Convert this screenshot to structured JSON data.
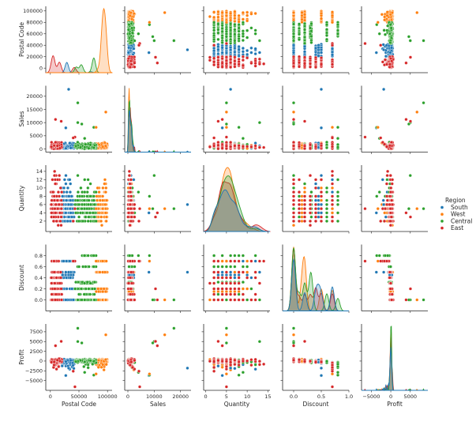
{
  "chart_data": {
    "type": "scatter",
    "title": "",
    "subtype": "pairplot",
    "variables": [
      "Postal Code",
      "Sales",
      "Quantity",
      "Discount",
      "Profit"
    ],
    "axes": {
      "Postal Code": {
        "lim": [
          -8000,
          108000
        ],
        "ticks": [
          0,
          50000,
          100000
        ],
        "tick_labels": [
          "0",
          "50000",
          "100000"
        ],
        "ytick_labels": [
          "0",
          "20000",
          "40000",
          "60000",
          "80000",
          "100000"
        ],
        "yticks": [
          0,
          20000,
          40000,
          60000,
          80000,
          100000
        ]
      },
      "Sales": {
        "lim": [
          -1200,
          24000
        ],
        "ticks": [
          0,
          10000,
          20000
        ],
        "tick_labels": [
          "0",
          "10000",
          "20000"
        ],
        "yticks": [
          0,
          5000,
          10000,
          15000,
          20000
        ],
        "ytick_labels": [
          "0",
          "5000",
          "10000",
          "15000",
          "20000"
        ]
      },
      "Quantity": {
        "lim": [
          -0.5,
          15.5
        ],
        "ticks": [
          0,
          5,
          10,
          15
        ],
        "tick_labels": [
          "0",
          "5",
          "10",
          "15"
        ],
        "yticks": [
          2,
          4,
          6,
          8,
          10,
          12,
          14
        ],
        "ytick_labels": [
          "2",
          "4",
          "6",
          "8",
          "10",
          "12",
          "14"
        ]
      },
      "Discount": {
        "lim": [
          -0.2,
          1.0
        ],
        "ticks": [
          0.0,
          0.5,
          1.0
        ],
        "tick_labels": [
          "0.0",
          "0.5",
          "1.0"
        ],
        "yticks": [
          0.0,
          0.2,
          0.4,
          0.6,
          0.8
        ],
        "ytick_labels": [
          "0.0",
          "0.2",
          "0.4",
          "0.6",
          "0.8"
        ]
      },
      "Profit": {
        "lim": [
          -7500,
          9500
        ],
        "ticks": [
          -5000,
          0,
          5000
        ],
        "tick_labels": [
          "−5000",
          "0",
          "5000"
        ],
        "yticks": [
          -5000,
          -2500,
          0,
          2500,
          5000,
          7500
        ],
        "ytick_labels": [
          "−5000",
          "−2500",
          "0",
          "2500",
          "5000",
          "7500"
        ]
      }
    },
    "legend": {
      "title": "Region",
      "position": "right",
      "entries": [
        {
          "name": "South",
          "color": "#1f77b4"
        },
        {
          "name": "West",
          "color": "#ff7f0e"
        },
        {
          "name": "Central",
          "color": "#2ca02c"
        },
        {
          "name": "East",
          "color": "#d62728"
        }
      ]
    },
    "hue_groups": {
      "East": {
        "postal_range": [
          1000,
          20000
        ],
        "postal_peaks": [
          [
            5000,
            1.0
          ],
          [
            16000,
            0.6
          ],
          [
            42000,
            0.3
          ]
        ]
      },
      "South": {
        "postal_range": [
          20000,
          42000
        ],
        "postal_peaks": [
          [
            29000,
            0.55
          ],
          [
            70000,
            0.05
          ]
        ]
      },
      "Central": {
        "postal_range": [
          43000,
          80000
        ],
        "postal_peaks": [
          [
            45000,
            0.3
          ],
          [
            55000,
            0.45
          ],
          [
            75000,
            0.8
          ]
        ]
      },
      "West": {
        "postal_range": [
          80000,
          99500
        ],
        "postal_peaks": [
          [
            85000,
            0.2
          ],
          [
            91000,
            2.0
          ],
          [
            94000,
            1.45
          ],
          [
            97000,
            1.3
          ]
        ]
      }
    },
    "outliers": [
      {
        "region": "South",
        "Postal Code": 32000,
        "Sales": 22638,
        "Quantity": 6,
        "Discount": 0.5,
        "Profit": -1811
      },
      {
        "region": "Central",
        "Postal Code": 48000,
        "Sales": 17500,
        "Quantity": 5,
        "Discount": 0.0,
        "Profit": 8400
      },
      {
        "region": "West",
        "Postal Code": 97000,
        "Sales": 14000,
        "Quantity": 5,
        "Discount": 0.0,
        "Profit": 6720
      },
      {
        "region": "Central",
        "Postal Code": 48000,
        "Sales": 10000,
        "Quantity": 13,
        "Discount": 0.0,
        "Profit": 5000
      },
      {
        "region": "Central",
        "Postal Code": 55000,
        "Sales": 9450,
        "Quantity": 5,
        "Discount": 0.0,
        "Profit": 4630
      },
      {
        "region": "East",
        "Postal Code": 19000,
        "Sales": 10500,
        "Quantity": 3,
        "Discount": 0.2,
        "Profit": 5040
      },
      {
        "region": "East",
        "Postal Code": 9000,
        "Sales": 11200,
        "Quantity": 4,
        "Discount": 0.0,
        "Profit": 3920
      },
      {
        "region": "East",
        "Postal Code": 43000,
        "Sales": 4500,
        "Quantity": 5,
        "Discount": 0.7,
        "Profit": -6600
      },
      {
        "region": "South",
        "Postal Code": 27000,
        "Sales": 8000,
        "Quantity": 4,
        "Discount": 0.5,
        "Profit": -3700
      },
      {
        "region": "Central",
        "Postal Code": 76000,
        "Sales": 8200,
        "Quantity": 8,
        "Discount": 0.8,
        "Profit": -3600
      },
      {
        "region": "West",
        "Postal Code": 80000,
        "Sales": 8200,
        "Quantity": 5,
        "Discount": 0.7,
        "Profit": -3300
      },
      {
        "region": "Central",
        "Postal Code": 60000,
        "Sales": 4000,
        "Quantity": 9,
        "Discount": 0.8,
        "Profit": -2900
      },
      {
        "region": "East",
        "Postal Code": 40000,
        "Sales": 4200,
        "Quantity": 2,
        "Discount": 0.7,
        "Profit": -2600
      }
    ]
  }
}
